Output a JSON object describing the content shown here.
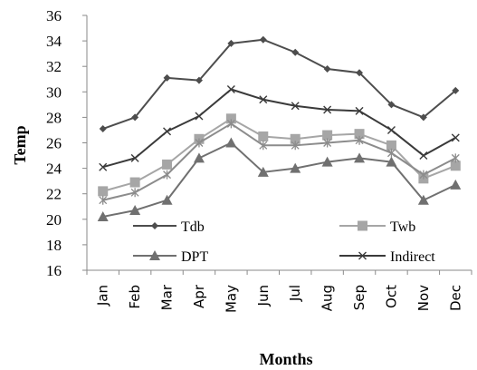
{
  "chart_data": {
    "type": "line",
    "categories": [
      "Jan",
      "Feb",
      "Mar",
      "Apr",
      "May",
      "Jun",
      "Jul",
      "Aug",
      "Sep",
      "Oct",
      "Nov",
      "Dec"
    ],
    "xlabel": "Months",
    "ylabel": "Temp",
    "ylim": [
      16,
      36
    ],
    "yticks": [
      16,
      18,
      20,
      22,
      24,
      26,
      28,
      30,
      32,
      34,
      36
    ],
    "grid": false,
    "legend_position": "bottom-inside",
    "series": [
      {
        "name": "Tdb",
        "marker": "diamond",
        "color": "#4d4d4d",
        "values": [
          27.1,
          28.0,
          31.1,
          30.9,
          33.8,
          34.1,
          33.1,
          31.8,
          31.5,
          29.0,
          28.0,
          30.1
        ]
      },
      {
        "name": "Twb",
        "marker": "square",
        "color": "#a6a6a6",
        "values": [
          22.2,
          22.9,
          24.3,
          26.3,
          27.9,
          26.5,
          26.3,
          26.6,
          26.7,
          25.8,
          23.2,
          24.2
        ]
      },
      {
        "name": "DPT",
        "marker": "triangle",
        "color": "#707070",
        "values": [
          20.2,
          20.7,
          21.5,
          24.8,
          26.0,
          23.7,
          24.0,
          24.5,
          24.8,
          24.5,
          21.5,
          22.7
        ]
      },
      {
        "name": "Indirect",
        "marker": "x",
        "color": "#3a3a3a",
        "values": [
          24.1,
          24.8,
          26.9,
          28.1,
          30.2,
          29.4,
          28.9,
          28.6,
          28.5,
          27.0,
          25.0,
          26.4
        ]
      },
      {
        "name": "",
        "marker": "star",
        "color": "#8c8c8c",
        "values": [
          21.5,
          22.1,
          23.5,
          26.0,
          27.5,
          25.8,
          25.8,
          26.0,
          26.2,
          25.2,
          23.5,
          24.8
        ]
      }
    ]
  }
}
